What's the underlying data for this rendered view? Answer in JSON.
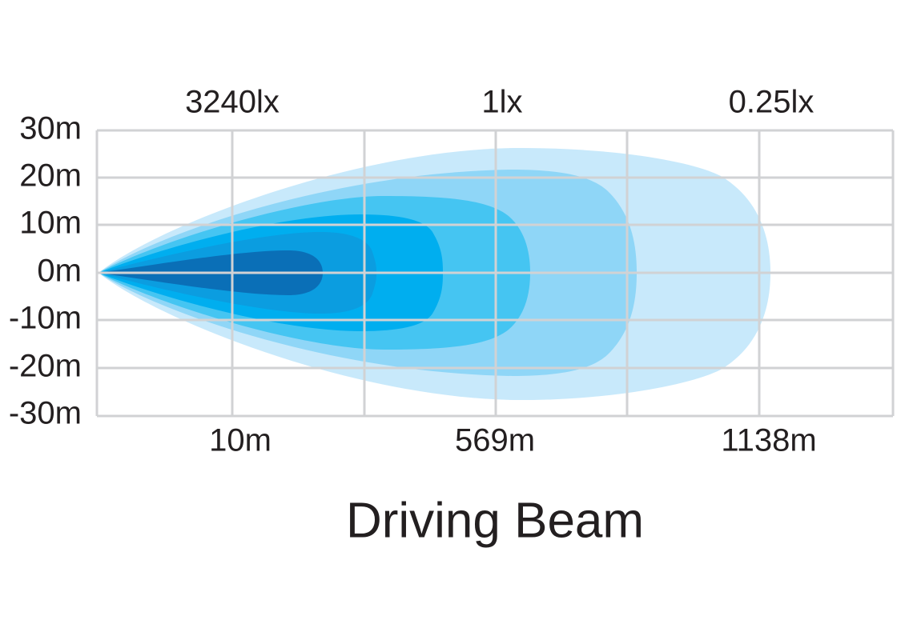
{
  "title": "Driving Beam",
  "lux_labels": [
    "3240lx",
    "1lx",
    "0.25lx"
  ],
  "y_axis": {
    "labels": [
      "30m",
      "20m",
      "10m",
      "0m",
      "-10m",
      "-20m",
      "-30m"
    ]
  },
  "x_axis": {
    "labels": [
      "10m",
      "569m",
      "1138m"
    ]
  }
}
